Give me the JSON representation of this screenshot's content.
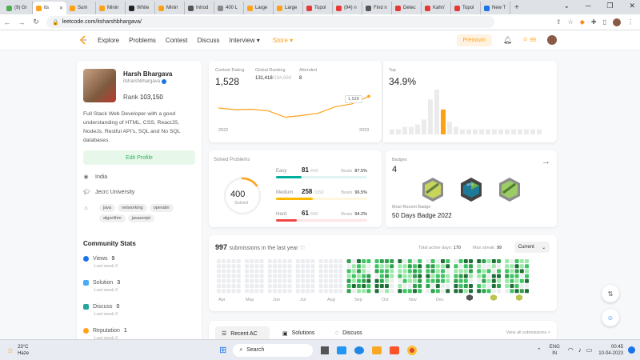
{
  "browser": {
    "tabs": [
      {
        "label": "(9) Gr",
        "color": "#4caf50"
      },
      {
        "label": "its",
        "color": "#ffa116",
        "active": true
      },
      {
        "label": "Sum",
        "color": "#ffa116"
      },
      {
        "label": "Minin",
        "color": "#ffa116"
      },
      {
        "label": "White",
        "color": "#222222"
      },
      {
        "label": "Minin",
        "color": "#ffa116"
      },
      {
        "label": "Introd",
        "color": "#555555"
      },
      {
        "label": "400 L",
        "color": "#888888"
      },
      {
        "label": "Large",
        "color": "#ffa116"
      },
      {
        "label": "Large",
        "color": "#ffa116"
      },
      {
        "label": "Topol",
        "color": "#e53935"
      },
      {
        "label": "(94) n",
        "color": "#e53935"
      },
      {
        "label": "Find n",
        "color": "#555555"
      },
      {
        "label": "Detec",
        "color": "#e53935"
      },
      {
        "label": "Kahn'",
        "color": "#e53935"
      },
      {
        "label": "Topol",
        "color": "#e53935"
      },
      {
        "label": "New T",
        "color": "#1a73e8"
      }
    ],
    "url": "leetcode.com/itsharshbhargava/",
    "new_tab_glyph": "+",
    "window_controls": [
      "⌄",
      "─",
      "❐",
      "✕"
    ]
  },
  "nav": {
    "links": [
      "Explore",
      "Problems",
      "Contest",
      "Discuss"
    ],
    "interview": "Interview ▾",
    "store": "Store ▾",
    "premium": "Premium",
    "streak": "99"
  },
  "profile": {
    "name": "Harsh Bhargava",
    "username": "itsharshbhargava",
    "rank_label": "Rank",
    "rank": "103,150",
    "bio": "Full Stack Web Developer with a good understanding of HTML, CSS, ReactJS, NodeJs, Restful API's, SQL and No SQL databases.",
    "edit": "Edit Profile",
    "location": "India",
    "university": "Jecrc University",
    "skills": [
      "java",
      "networking",
      "operatin",
      "algorithm",
      "javascript"
    ],
    "community_title": "Community Stats",
    "stats": [
      {
        "label": "Views",
        "value": "9",
        "sub": "Last week 0",
        "color": "#1a73e8"
      },
      {
        "label": "Solution",
        "value": "3",
        "sub": "Last week 0",
        "color": "#4dabf5"
      },
      {
        "label": "Discuss",
        "value": "0",
        "sub": "Last week 0",
        "color": "#26a69a"
      },
      {
        "label": "Reputation",
        "value": "1",
        "sub": "Last week 0",
        "color": "#ffa116"
      }
    ]
  },
  "contest": {
    "rating_label": "Contest Rating",
    "rating": "1,528",
    "global_label": "Global Ranking",
    "global": "131,418",
    "global_total": "/184,688",
    "attended_label": "Attended",
    "attended": "8",
    "year_start": "2022",
    "year_end": "2023",
    "tooltip": "1,528",
    "top_label": "Top",
    "top": "34.9%",
    "history": [
      1500,
      1496,
      1497,
      1493,
      1478,
      1482,
      1488,
      1503,
      1510,
      1528
    ],
    "distribution": [
      2,
      2,
      3,
      3,
      4,
      6,
      14,
      18,
      10,
      5,
      3,
      2,
      2,
      2,
      2,
      2,
      2,
      2,
      2,
      2,
      2,
      2,
      2,
      2
    ],
    "highlight_index": 8
  },
  "solved": {
    "title": "Solved Problems",
    "total": "400",
    "total_label": "Solved",
    "rows": [
      {
        "label": "Easy",
        "value": "81",
        "total": "/640",
        "beats_label": "Beats",
        "beats": "87.5%",
        "color": "#00af9b",
        "bg": "#e0f5f2",
        "frac": 0.127
      },
      {
        "label": "Medium",
        "value": "258",
        "total": "/1392",
        "beats_label": "Beats",
        "beats": "96.5%",
        "color": "#ffb800",
        "bg": "#fff6de",
        "frac": 0.185
      },
      {
        "label": "Hard",
        "value": "61",
        "total": "/585",
        "beats_label": "Beats",
        "beats": "94.2%",
        "color": "#ef4743",
        "bg": "#fde6e5",
        "frac": 0.104
      }
    ]
  },
  "badges": {
    "title": "Badges",
    "count": "4",
    "recent_label": "Most Recent Badge",
    "recent": "50 Days Badge 2022"
  },
  "heatmap": {
    "count": "997",
    "caption": "submissions in the last year",
    "active_label": "Total active days:",
    "active": "170",
    "streak_label": "Max streak:",
    "streak": "99",
    "select": "Current",
    "months": [
      "Apr",
      "May",
      "Jun",
      "Jul",
      "Aug",
      "Sep",
      "Oct",
      "Nov",
      "Dec"
    ]
  },
  "recent": {
    "tabs": [
      "Recent AC",
      "Solutions",
      "Discuss"
    ],
    "view_all": "View all submissions >"
  },
  "taskbar": {
    "weather_temp": "23°C",
    "weather_text": "Haze",
    "search": "Search",
    "lang": "ENG",
    "region": "IN",
    "time": "00:45",
    "date": "10-04-2023"
  }
}
